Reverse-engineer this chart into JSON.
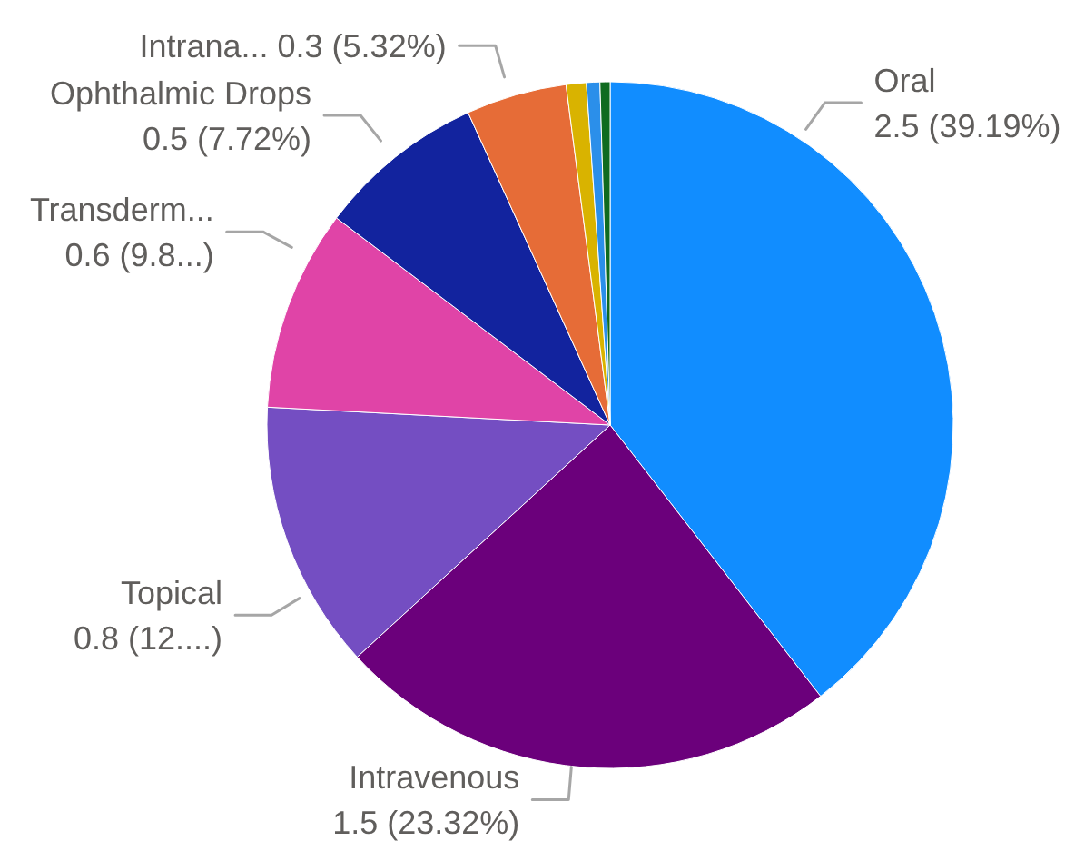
{
  "chart_data": {
    "type": "pie",
    "categories": [
      "Oral",
      "Intravenous",
      "Topical",
      "Transderm...",
      "Ophthalmic Drops",
      "Intrana...",
      null,
      null,
      null
    ],
    "values": [
      2.5,
      1.5,
      0.8,
      0.6,
      0.5,
      0.3,
      0.06,
      0.04,
      0.03
    ],
    "colors": [
      "#118dff",
      "#6b007b",
      "#744ec2",
      "#e044a7",
      "#12239e",
      "#e66c37",
      "#d9b300",
      "#2b8fea",
      "#0f6b1f"
    ],
    "value_labels": [
      "2.5 (39.19%)",
      "1.5 (23.32%)",
      "0.8 (12....)",
      "0.6 (9.8...)",
      "0.5 (7.72%)",
      "0.3 (5.32%)",
      null,
      null,
      null
    ]
  }
}
